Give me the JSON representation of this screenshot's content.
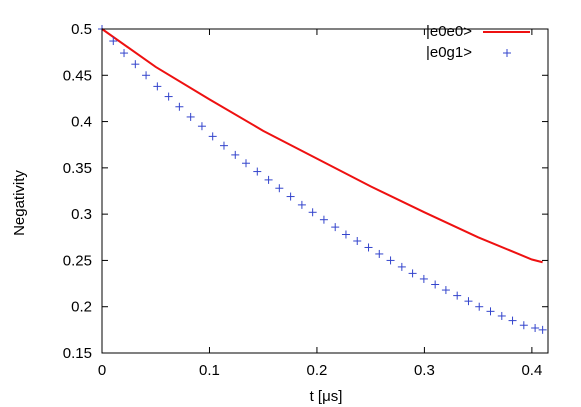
{
  "chart_data": {
    "type": "line",
    "xlabel": "t [μs]",
    "ylabel": "Negativity",
    "xlim": [
      0,
      0.415
    ],
    "ylim": [
      0.15,
      0.5
    ],
    "xticks": [
      0,
      0.1,
      0.2,
      0.3,
      0.4
    ],
    "xtick_labels": [
      "0",
      "0.1",
      "0.2",
      "0.3",
      "0.4"
    ],
    "yticks": [
      0.15,
      0.2,
      0.25,
      0.3,
      0.35,
      0.4,
      0.45,
      0.5
    ],
    "ytick_labels": [
      "0.15",
      "0.2",
      "0.25",
      "0.3",
      "0.35",
      "0.4",
      "0.45",
      "0.5"
    ],
    "grid": false,
    "legend_position": "top-right",
    "series": [
      {
        "name": "|e0e0>",
        "style": "line",
        "color": "#ee1111",
        "x": [
          0,
          0.05,
          0.1,
          0.15,
          0.2,
          0.25,
          0.3,
          0.35,
          0.4,
          0.41
        ],
        "y": [
          0.5,
          0.459,
          0.424,
          0.39,
          0.36,
          0.33,
          0.302,
          0.275,
          0.251,
          0.248
        ]
      },
      {
        "name": "|e0g1>",
        "style": "markers",
        "marker": "plus",
        "color": "#3344cc",
        "x": [
          0,
          0.0105,
          0.0205,
          0.031,
          0.041,
          0.0515,
          0.062,
          0.072,
          0.0825,
          0.093,
          0.103,
          0.1135,
          0.124,
          0.134,
          0.1445,
          0.155,
          0.165,
          0.1755,
          0.186,
          0.196,
          0.2065,
          0.217,
          0.227,
          0.2375,
          0.248,
          0.258,
          0.2685,
          0.279,
          0.289,
          0.2995,
          0.31,
          0.32,
          0.3305,
          0.341,
          0.351,
          0.3615,
          0.372,
          0.382,
          0.3925,
          0.403,
          0.41
        ],
        "y": [
          0.5,
          0.487,
          0.474,
          0.462,
          0.45,
          0.438,
          0.427,
          0.416,
          0.405,
          0.395,
          0.384,
          0.374,
          0.364,
          0.355,
          0.346,
          0.337,
          0.328,
          0.319,
          0.31,
          0.302,
          0.294,
          0.286,
          0.278,
          0.271,
          0.264,
          0.257,
          0.25,
          0.243,
          0.236,
          0.23,
          0.224,
          0.218,
          0.212,
          0.206,
          0.2,
          0.195,
          0.19,
          0.185,
          0.18,
          0.177,
          0.175
        ]
      }
    ]
  }
}
